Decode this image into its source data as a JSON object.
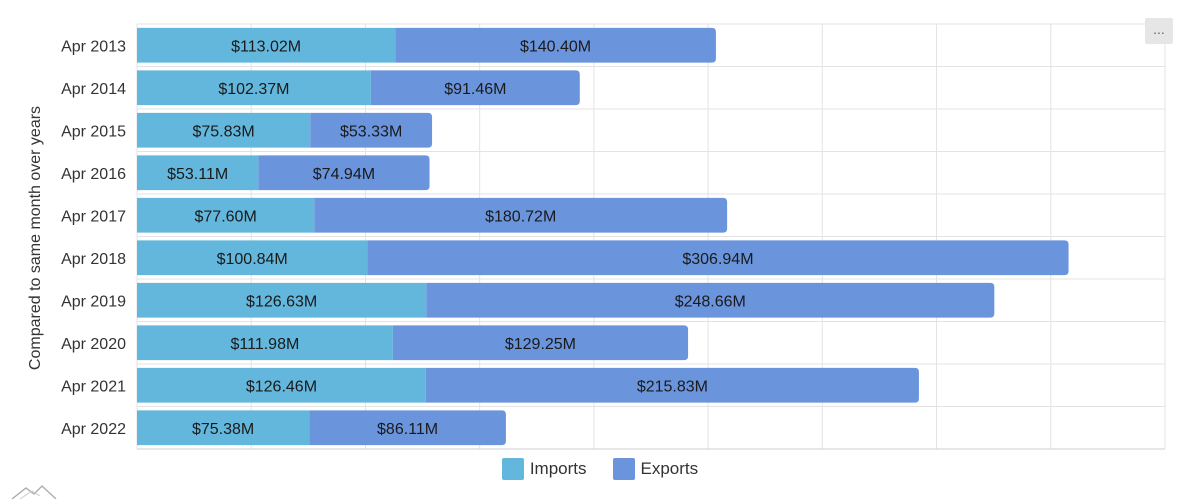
{
  "chart_data": {
    "type": "bar",
    "orientation": "horizontal",
    "stacked": true,
    "categories": [
      "Apr 2013",
      "Apr 2014",
      "Apr 2015",
      "Apr 2016",
      "Apr 2017",
      "Apr 2018",
      "Apr 2019",
      "Apr 2020",
      "Apr 2021",
      "Apr 2022"
    ],
    "series": [
      {
        "name": "Imports",
        "color": "#63b7dc",
        "values": [
          113.02,
          102.37,
          75.83,
          53.11,
          77.6,
          100.84,
          126.63,
          111.98,
          126.46,
          75.38
        ],
        "labels": [
          "$113.02M",
          "$102.37M",
          "$75.83M",
          "$53.11M",
          "$77.60M",
          "$100.84M",
          "$126.63M",
          "$111.98M",
          "$126.46M",
          "$75.38M"
        ]
      },
      {
        "name": "Exports",
        "color": "#6a95dd",
        "values": [
          140.4,
          91.46,
          53.33,
          74.94,
          180.72,
          306.94,
          248.66,
          129.25,
          215.83,
          86.11
        ],
        "labels": [
          "$140.40M",
          "$91.46M",
          "$53.33M",
          "$74.94M",
          "$180.72M",
          "$306.94M",
          "$248.66M",
          "$129.25M",
          "$215.83M",
          "$86.11M"
        ]
      }
    ],
    "ylabel": "Compared to same month over years",
    "xlim": [
      0,
      450
    ],
    "grid": true,
    "legend_position": "bottom"
  },
  "menu": {
    "label": "..."
  }
}
